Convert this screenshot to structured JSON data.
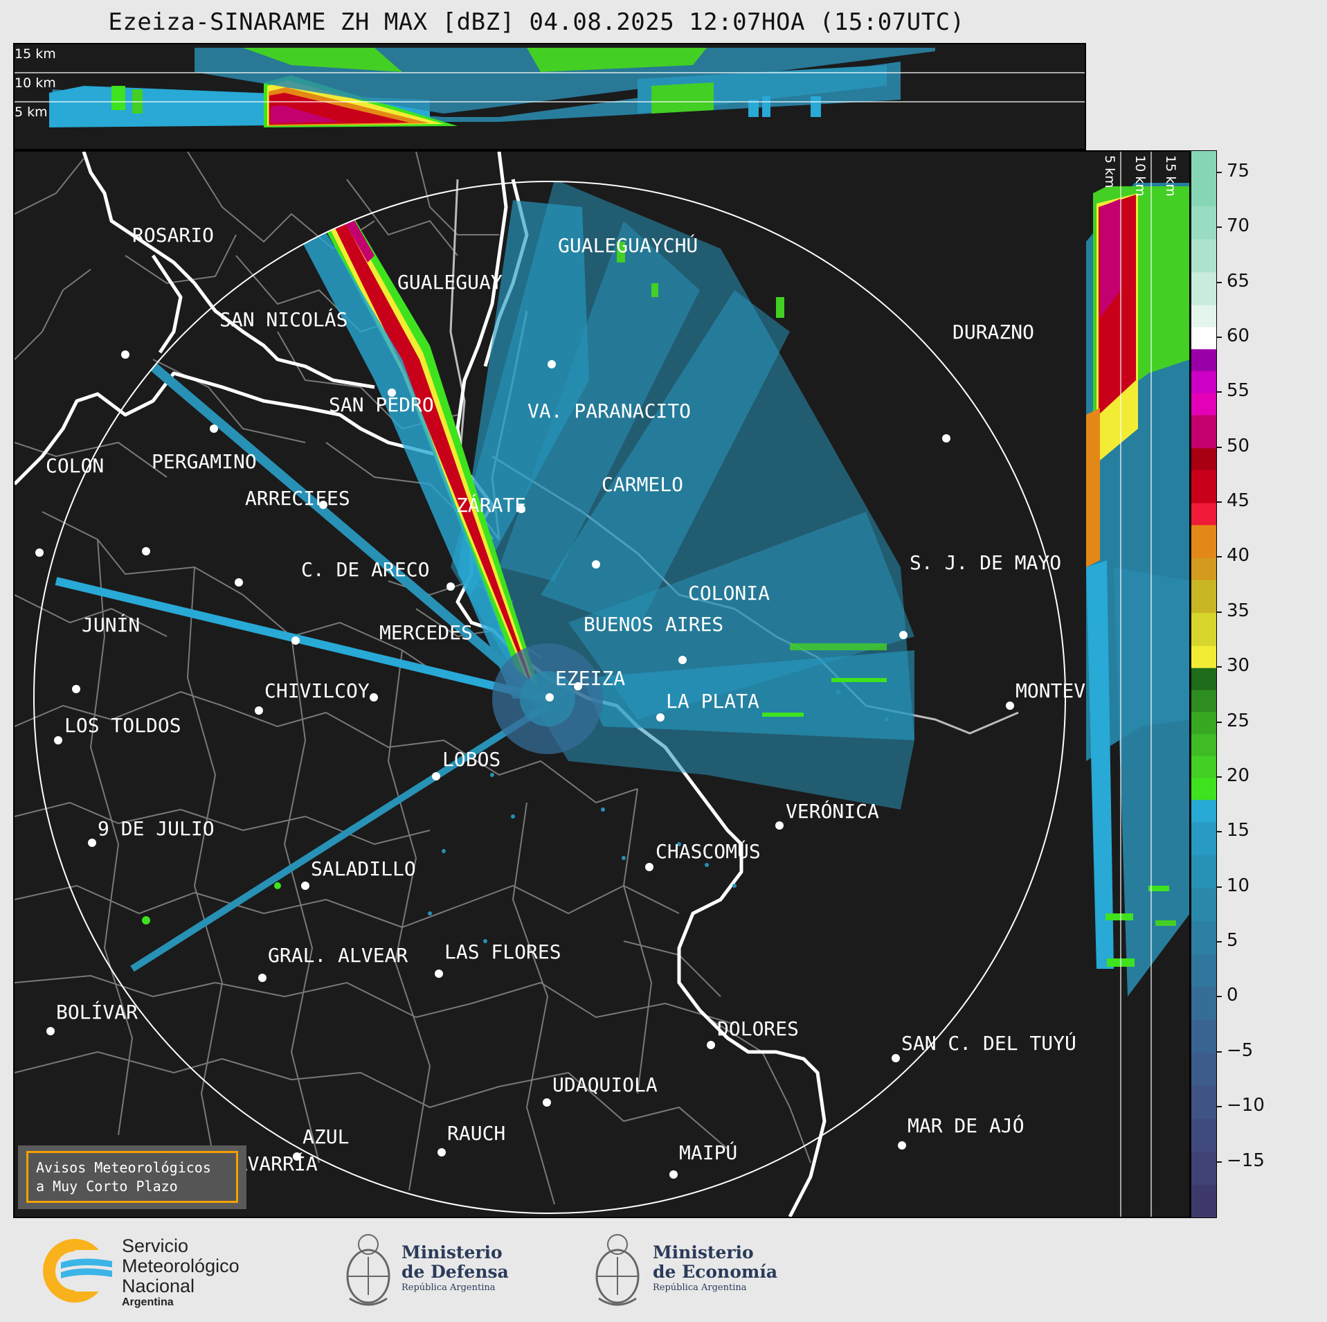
{
  "title": "Ezeiza-SINARAME ZH MAX [dBZ] 04.08.2025 12:07HOA (15:07UTC)",
  "top_panel": {
    "labels": [
      "15 km",
      "10 km",
      "5 km"
    ]
  },
  "side_panel": {
    "labels": [
      "5 km",
      "10 km",
      "15 km"
    ]
  },
  "colorbar": {
    "ticks": [
      "75",
      "70",
      "65",
      "60",
      "55",
      "50",
      "45",
      "40",
      "35",
      "30",
      "25",
      "20",
      "15",
      "10",
      "5",
      "0",
      "−5",
      "−10",
      "−15"
    ],
    "range": [
      -20,
      77
    ],
    "colors": [
      {
        "from": -20,
        "to": -17,
        "color": "#3d3a6b"
      },
      {
        "from": -17,
        "to": -14,
        "color": "#3f4275"
      },
      {
        "from": -14,
        "to": -11,
        "color": "#404a7e"
      },
      {
        "from": -11,
        "to": -8,
        "color": "#405385"
      },
      {
        "from": -8,
        "to": -5,
        "color": "#3d5b8b"
      },
      {
        "from": -5,
        "to": -2,
        "color": "#396491"
      },
      {
        "from": -2,
        "to": 1,
        "color": "#356d97"
      },
      {
        "from": 1,
        "to": 4,
        "color": "#31769d"
      },
      {
        "from": 4,
        "to": 7,
        "color": "#2d7fa4"
      },
      {
        "from": 7,
        "to": 10,
        "color": "#2a88ab"
      },
      {
        "from": 10,
        "to": 13,
        "color": "#2891b6"
      },
      {
        "from": 13,
        "to": 16,
        "color": "#279bc3"
      },
      {
        "from": 16,
        "to": 18,
        "color": "#28a9d6"
      },
      {
        "from": 18,
        "to": 20,
        "color": "#3fe21e"
      },
      {
        "from": 20,
        "to": 22,
        "color": "#43cf24"
      },
      {
        "from": 22,
        "to": 24,
        "color": "#3fbb25"
      },
      {
        "from": 24,
        "to": 26,
        "color": "#38a823"
      },
      {
        "from": 26,
        "to": 28,
        "color": "#2d8d20"
      },
      {
        "from": 28,
        "to": 30,
        "color": "#1f6c1a"
      },
      {
        "from": 30,
        "to": 32,
        "color": "#f2ec34"
      },
      {
        "from": 32,
        "to": 35,
        "color": "#d8d62c"
      },
      {
        "from": 35,
        "to": 38,
        "color": "#c9b625"
      },
      {
        "from": 38,
        "to": 40,
        "color": "#d39b1d"
      },
      {
        "from": 40,
        "to": 43,
        "color": "#e38817"
      },
      {
        "from": 43,
        "to": 45,
        "color": "#f01b38"
      },
      {
        "from": 45,
        "to": 48,
        "color": "#c9001a"
      },
      {
        "from": 48,
        "to": 50,
        "color": "#a80012"
      },
      {
        "from": 50,
        "to": 53,
        "color": "#c4006e"
      },
      {
        "from": 53,
        "to": 55,
        "color": "#e400b7"
      },
      {
        "from": 55,
        "to": 57,
        "color": "#cd00c5"
      },
      {
        "from": 57,
        "to": 59,
        "color": "#9a00a8"
      },
      {
        "from": 59,
        "to": 61,
        "color": "#ffffff"
      },
      {
        "from": 61,
        "to": 63,
        "color": "#e4f5ec"
      },
      {
        "from": 63,
        "to": 66,
        "color": "#c8ecdc"
      },
      {
        "from": 66,
        "to": 69,
        "color": "#ade3cd"
      },
      {
        "from": 69,
        "to": 72,
        "color": "#9adcc2"
      },
      {
        "from": 72,
        "to": 77,
        "color": "#86d6b5"
      }
    ]
  },
  "cities": [
    {
      "name": "ROSARIO"
    },
    {
      "name": "GUALEGUAYCHÚ"
    },
    {
      "name": "GUALEGUAY"
    },
    {
      "name": "SAN NICOLÁS"
    },
    {
      "name": "DURAZNO"
    },
    {
      "name": "SAN PEDRO"
    },
    {
      "name": "VA. PARANACITO"
    },
    {
      "name": "COLON"
    },
    {
      "name": "PERGAMINO"
    },
    {
      "name": "CARMELO"
    },
    {
      "name": "ARRECIFES"
    },
    {
      "name": "ZÁRATE"
    },
    {
      "name": "C. DE ARECO"
    },
    {
      "name": "S. J. DE MAYO"
    },
    {
      "name": "COLONIA"
    },
    {
      "name": "JUNÍN"
    },
    {
      "name": "BUENOS AIRES"
    },
    {
      "name": "MERCEDES"
    },
    {
      "name": "EZEIZA"
    },
    {
      "name": "MONTEVIDEO"
    },
    {
      "name": "CHIVILCOY"
    },
    {
      "name": "LA PLATA"
    },
    {
      "name": "LOS TOLDOS"
    },
    {
      "name": "LOBOS"
    },
    {
      "name": "VERÓNICA"
    },
    {
      "name": "9 DE JULIO"
    },
    {
      "name": "CHASCOMÚS"
    },
    {
      "name": "SALADILLO"
    },
    {
      "name": "GRAL. ALVEAR"
    },
    {
      "name": "LAS FLORES"
    },
    {
      "name": "BOLÍVAR"
    },
    {
      "name": "DOLORES"
    },
    {
      "name": "SAN C. DEL TUYÚ"
    },
    {
      "name": "UDAQUIOLA"
    },
    {
      "name": "MAR DE AJÓ"
    },
    {
      "name": "AZUL"
    },
    {
      "name": "RAUCH"
    },
    {
      "name": "OLAVARRÍA"
    },
    {
      "name": "MAIPÚ"
    }
  ],
  "notice": {
    "line1": "Avisos Meteorológicos",
    "line2": "a Muy Corto Plazo"
  },
  "logos": {
    "smn": {
      "line1": "Servicio",
      "line2": "Meteorológico",
      "line3": "Nacional",
      "line4": "Argentina"
    },
    "defensa": {
      "line1": "Ministerio",
      "line2": "de Defensa",
      "line3": "República Argentina"
    },
    "economia": {
      "line1": "Ministerio",
      "line2": "de Economía",
      "line3": "República Argentina"
    }
  },
  "colors": {
    "background": "#1b1b1b",
    "frame": "#e8e8e8",
    "accent": "#f5a000",
    "label": "#ffffff"
  }
}
